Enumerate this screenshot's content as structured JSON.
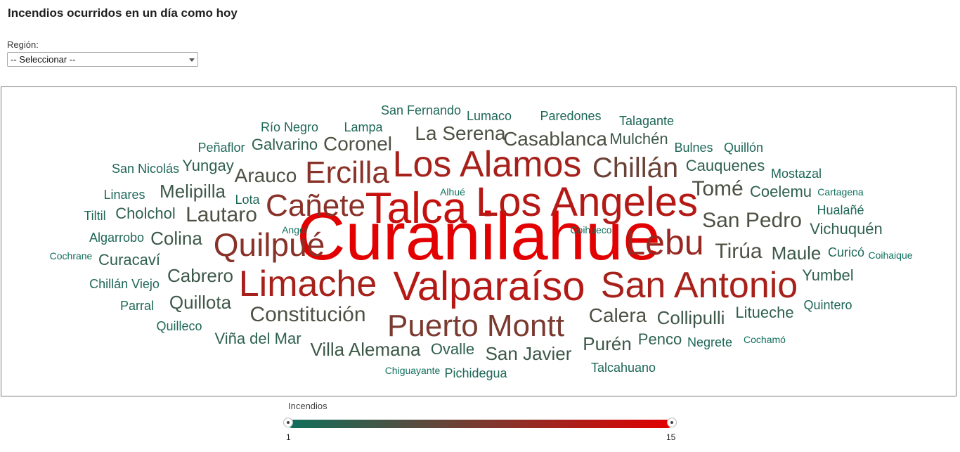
{
  "title": "Incendios ocurridos en un día como hoy",
  "filter": {
    "label": "Región:",
    "selected": "-- Seleccionar --"
  },
  "legend": {
    "title": "Incendios",
    "min_label": "1",
    "max_label": "15",
    "color_min": "#0f6f5c",
    "color_max": "#e20000"
  },
  "chart_data": {
    "type": "wordcloud",
    "value_range": [
      1,
      15
    ],
    "words": [
      {
        "text": "Curanilahue",
        "value": 15
      },
      {
        "text": "Talca",
        "value": 13
      },
      {
        "text": "Los Angeles",
        "value": 12
      },
      {
        "text": "Valparaíso",
        "value": 12
      },
      {
        "text": "San Antonio",
        "value": 11
      },
      {
        "text": "Limache",
        "value": 11
      },
      {
        "text": "Los Alamos",
        "value": 11
      },
      {
        "text": "Lebu",
        "value": 10
      },
      {
        "text": "Quilpué",
        "value": 9
      },
      {
        "text": "Cañete",
        "value": 9
      },
      {
        "text": "Ercilla",
        "value": 9
      },
      {
        "text": "Puerto Montt",
        "value": 8
      },
      {
        "text": "Chillán",
        "value": 7
      },
      {
        "text": "San Pedro",
        "value": 5
      },
      {
        "text": "Tomé",
        "value": 5
      },
      {
        "text": "Constitución",
        "value": 5
      },
      {
        "text": "Tirúa",
        "value": 5
      },
      {
        "text": "Arauco",
        "value": 5
      },
      {
        "text": "Lautaro",
        "value": 5
      },
      {
        "text": "Coronel",
        "value": 5
      },
      {
        "text": "Casablanca",
        "value": 5
      },
      {
        "text": "La Serena",
        "value": 5
      },
      {
        "text": "Calera",
        "value": 5
      },
      {
        "text": "Villa Alemana",
        "value": 4
      },
      {
        "text": "Cabrero",
        "value": 4
      },
      {
        "text": "Quillota",
        "value": 4
      },
      {
        "text": "Colina",
        "value": 4
      },
      {
        "text": "Melipilla",
        "value": 4
      },
      {
        "text": "San Javier",
        "value": 4
      },
      {
        "text": "Collipulli",
        "value": 4
      },
      {
        "text": "Maule",
        "value": 4
      },
      {
        "text": "Purén",
        "value": 4
      },
      {
        "text": "Mulchén",
        "value": 4
      },
      {
        "text": "Vichuquén",
        "value": 3
      },
      {
        "text": "Cauquenes",
        "value": 3
      },
      {
        "text": "Coelemu",
        "value": 3
      },
      {
        "text": "Galvarino",
        "value": 3
      },
      {
        "text": "Cholchol",
        "value": 3
      },
      {
        "text": "Viña del Mar",
        "value": 3
      },
      {
        "text": "Ovalle",
        "value": 3
      },
      {
        "text": "Litueche",
        "value": 3
      },
      {
        "text": "Yumbel",
        "value": 3
      },
      {
        "text": "Penco",
        "value": 3
      },
      {
        "text": "Curacaví",
        "value": 3
      },
      {
        "text": "Yungay",
        "value": 3
      },
      {
        "text": "Quintero",
        "value": 2
      },
      {
        "text": "Talagante",
        "value": 2
      },
      {
        "text": "Paredones",
        "value": 2
      },
      {
        "text": "Lumaco",
        "value": 2
      },
      {
        "text": "San Fernando",
        "value": 2
      },
      {
        "text": "Lampa",
        "value": 2
      },
      {
        "text": "Río Negro",
        "value": 2
      },
      {
        "text": "Peñaflor",
        "value": 2
      },
      {
        "text": "San Nicolás",
        "value": 2
      },
      {
        "text": "Linares",
        "value": 2
      },
      {
        "text": "Tiltil",
        "value": 2
      },
      {
        "text": "Lota",
        "value": 2
      },
      {
        "text": "Algarrobo",
        "value": 2
      },
      {
        "text": "Chillán Viejo",
        "value": 2
      },
      {
        "text": "Parral",
        "value": 2
      },
      {
        "text": "Quilleco",
        "value": 2
      },
      {
        "text": "Bulnes",
        "value": 2
      },
      {
        "text": "Quillón",
        "value": 2
      },
      {
        "text": "Mostazal",
        "value": 2
      },
      {
        "text": "Hualañé",
        "value": 2
      },
      {
        "text": "Curicó",
        "value": 2
      },
      {
        "text": "Negrete",
        "value": 2
      },
      {
        "text": "Talcahuano",
        "value": 2
      },
      {
        "text": "Pichidegua",
        "value": 2
      },
      {
        "text": "Chiguayante",
        "value": 1
      },
      {
        "text": "Cochamó",
        "value": 1
      },
      {
        "text": "Coihaique",
        "value": 1
      },
      {
        "text": "Cartagena",
        "value": 1
      },
      {
        "text": "Coihueco",
        "value": 1
      },
      {
        "text": "Angol",
        "value": 1
      },
      {
        "text": "Alhué",
        "value": 1
      },
      {
        "text": "Cochrane",
        "value": 1
      }
    ]
  }
}
